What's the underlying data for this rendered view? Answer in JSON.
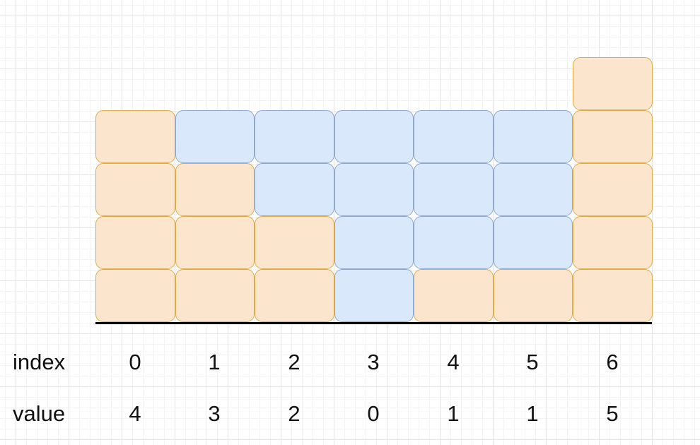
{
  "colors": {
    "bar_fill": "#fce5cd",
    "bar_border": "#dfac48",
    "water_fill": "#dae8fc",
    "water_border": "#8ea8cf",
    "axis": "#000000"
  },
  "max_level": 4,
  "labels": {
    "index_row": "index",
    "value_row": "value"
  },
  "indices": [
    "0",
    "1",
    "2",
    "3",
    "4",
    "5",
    "6"
  ],
  "values": [
    "4",
    "3",
    "2",
    "0",
    "1",
    "1",
    "5"
  ],
  "columns": [
    {
      "bar": 4,
      "water": 0
    },
    {
      "bar": 3,
      "water": 1
    },
    {
      "bar": 2,
      "water": 2
    },
    {
      "bar": 0,
      "water": 4
    },
    {
      "bar": 1,
      "water": 3
    },
    {
      "bar": 1,
      "water": 3
    },
    {
      "bar": 5,
      "water": 0
    }
  ]
}
